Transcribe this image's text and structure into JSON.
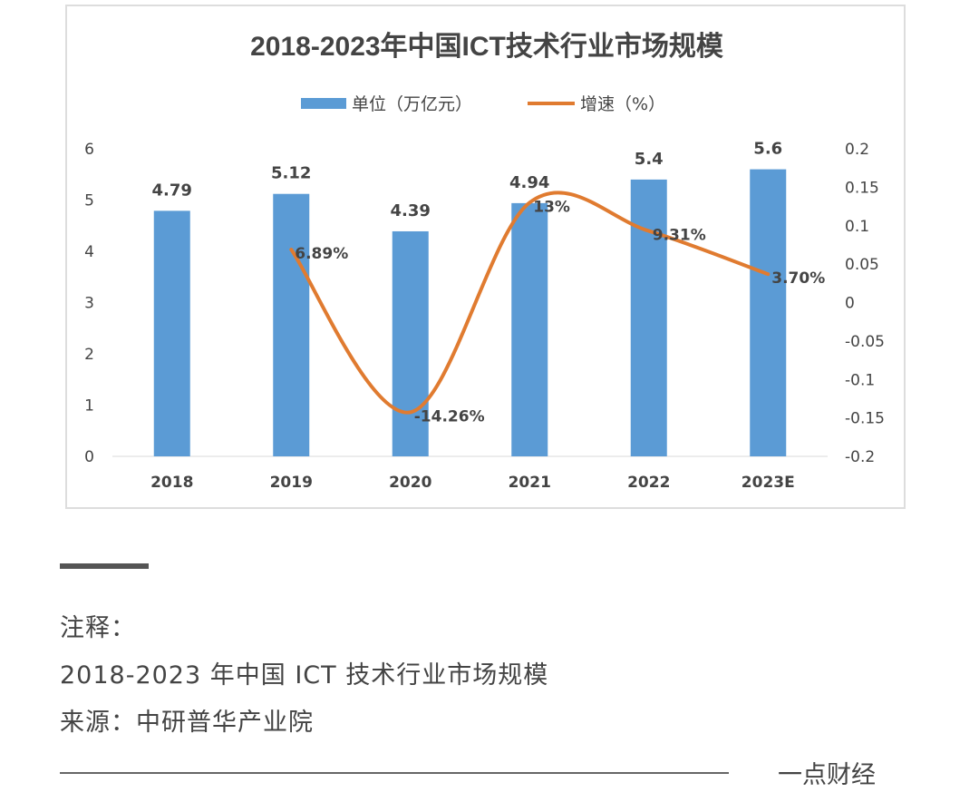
{
  "chart_data": {
    "type": "bar+line",
    "title": "2018-2023年中国ICT技术行业市场规模",
    "categories": [
      "2018",
      "2019",
      "2020",
      "2021",
      "2022",
      "2023E"
    ],
    "series": [
      {
        "name": "单位（万亿元）",
        "type": "bar",
        "axis": "left",
        "color": "#5b9bd5",
        "values": [
          4.79,
          5.12,
          4.39,
          4.94,
          5.4,
          5.6
        ],
        "labels": [
          "4.79",
          "5.12",
          "4.39",
          "4.94",
          "5.4",
          "5.6"
        ]
      },
      {
        "name": "增速（%）",
        "type": "line",
        "axis": "right",
        "color": "#e07b30",
        "smooth": true,
        "values": [
          null,
          0.0689,
          -0.1426,
          0.13,
          0.0931,
          0.037
        ],
        "labels": [
          "",
          "6.89%",
          "-14.26%",
          "13%",
          "9.31%",
          "3.70%"
        ]
      }
    ],
    "left_axis": {
      "ylim": [
        0,
        6
      ],
      "ticks": [
        "0",
        "1",
        "2",
        "3",
        "4",
        "5",
        "6"
      ]
    },
    "right_axis": {
      "ylim": [
        -0.2,
        0.2
      ],
      "ticks": [
        "-0.2",
        "-0.15",
        "-0.1",
        "-0.05",
        "0",
        "0.05",
        "0.1",
        "0.15",
        "0.2"
      ]
    },
    "grid": false,
    "legend_position": "top"
  },
  "notes": {
    "heading": "注释：",
    "caption": "2018-2023 年中国 ICT 技术行业市场规模",
    "source": "来源：中研普华产业院"
  },
  "brand": "一点财经"
}
